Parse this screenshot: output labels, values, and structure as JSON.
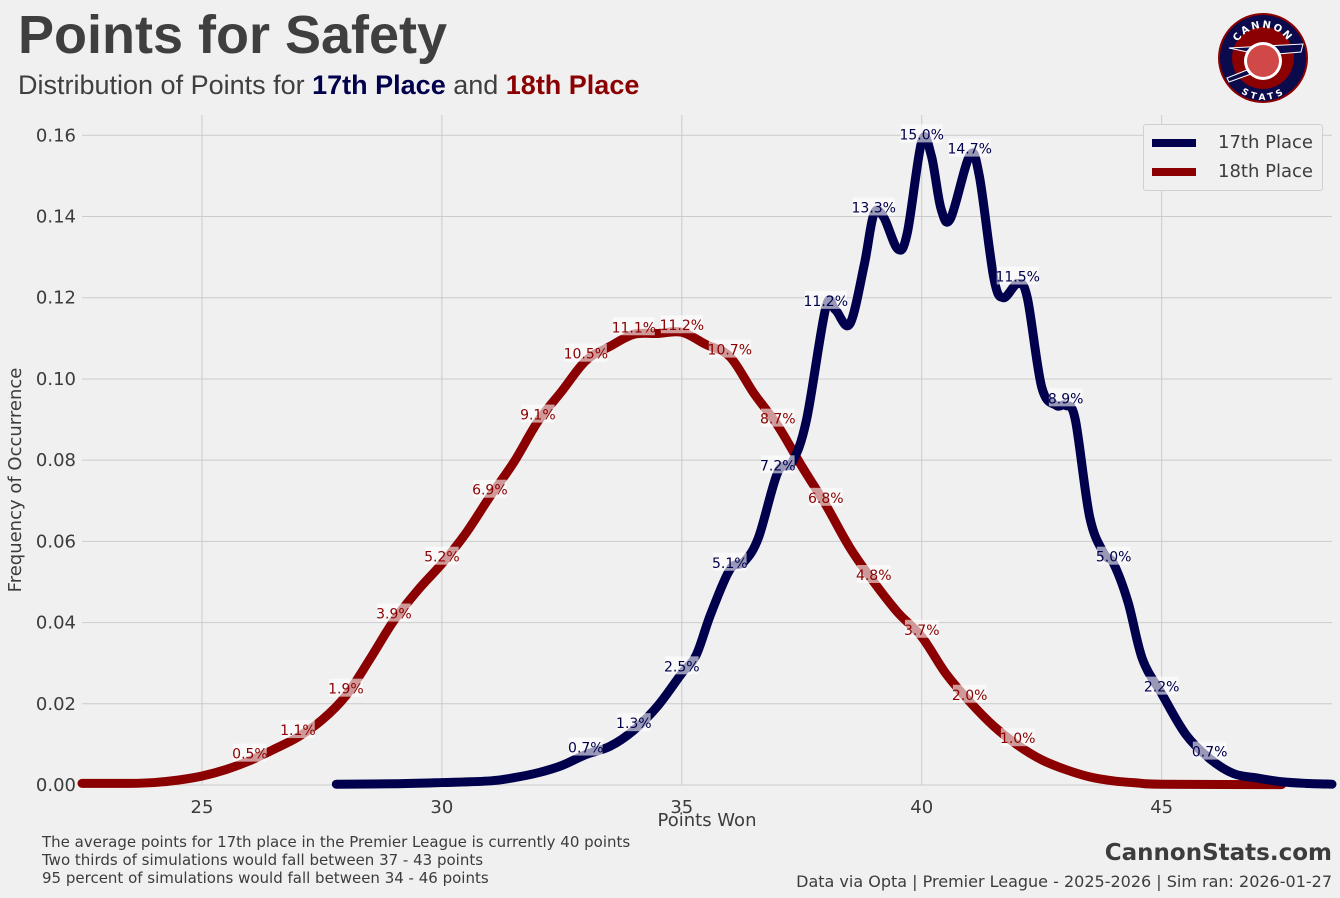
{
  "header": {
    "title": "Points for Safety",
    "subtitle_prefix": "Distribution of Points for ",
    "subtitle_17": "17th Place",
    "subtitle_and": " and ",
    "subtitle_18": "18th Place"
  },
  "logo": {
    "top_text": "CANNON",
    "bottom_text": "STATS"
  },
  "footer": {
    "notes": [
      "The average points for 17th place in the Premier League is currently 40 points",
      "Two thirds of simulations would fall between 37 - 43 points",
      "95 percent of simulations would fall between 34 - 46 points"
    ],
    "brand": "CannonStats.com",
    "source": "Data via Opta | Premier League - 2025-2026 | Sim ran: 2026-01-27"
  },
  "colors": {
    "s17": "#00004c",
    "s18": "#8b0000"
  },
  "chart_data": {
    "type": "line",
    "title": "Points for Safety",
    "xlabel": "Points Won",
    "ylabel": "Frequency of Occurrence",
    "xlim": [
      22.5,
      48.55
    ],
    "ylim": [
      0,
      0.165
    ],
    "xticks": [
      25,
      30,
      35,
      40,
      45
    ],
    "yticks": [
      0.0,
      0.02,
      0.04,
      0.06,
      0.08,
      0.1,
      0.12,
      0.14,
      0.16
    ],
    "grid": true,
    "legend_position": "top-right",
    "series": [
      {
        "name": "17th Place",
        "color": "#00004c",
        "curve": [
          [
            27.8,
            0.0002
          ],
          [
            29,
            0.0003
          ],
          [
            30,
            0.0006
          ],
          [
            31,
            0.001
          ],
          [
            31.5,
            0.0018
          ],
          [
            32,
            0.003
          ],
          [
            32.5,
            0.0048
          ],
          [
            33,
            0.0075
          ],
          [
            33.5,
            0.0095
          ],
          [
            34,
            0.0135
          ],
          [
            34.5,
            0.0195
          ],
          [
            35,
            0.0275
          ],
          [
            35.3,
            0.032
          ],
          [
            35.6,
            0.042
          ],
          [
            36,
            0.053
          ],
          [
            36.3,
            0.055
          ],
          [
            36.6,
            0.061
          ],
          [
            37,
            0.077
          ],
          [
            37.3,
            0.0795
          ],
          [
            37.6,
            0.09
          ],
          [
            38,
            0.1175
          ],
          [
            38.2,
            0.117
          ],
          [
            38.5,
            0.1135
          ],
          [
            38.8,
            0.128
          ],
          [
            39,
            0.1405
          ],
          [
            39.2,
            0.14
          ],
          [
            39.5,
            0.132
          ],
          [
            39.7,
            0.136
          ],
          [
            40,
            0.1585
          ],
          [
            40.2,
            0.155
          ],
          [
            40.4,
            0.142
          ],
          [
            40.6,
            0.1395
          ],
          [
            41,
            0.155
          ],
          [
            41.2,
            0.15
          ],
          [
            41.5,
            0.125
          ],
          [
            41.7,
            0.12
          ],
          [
            42,
            0.1235
          ],
          [
            42.2,
            0.12
          ],
          [
            42.5,
            0.098
          ],
          [
            42.8,
            0.0935
          ],
          [
            43,
            0.0935
          ],
          [
            43.2,
            0.09
          ],
          [
            43.5,
            0.066
          ],
          [
            43.8,
            0.057
          ],
          [
            44,
            0.0545
          ],
          [
            44.3,
            0.045
          ],
          [
            44.6,
            0.031
          ],
          [
            45,
            0.0225
          ],
          [
            45.5,
            0.0125
          ],
          [
            46,
            0.0065
          ],
          [
            46.5,
            0.0028
          ],
          [
            47,
            0.0017
          ],
          [
            47.5,
            0.0008
          ],
          [
            48,
            0.0004
          ],
          [
            48.55,
            0.0002
          ]
        ],
        "labels": [
          [
            33,
            "0.7%"
          ],
          [
            34,
            "1.3%"
          ],
          [
            35,
            "2.5%"
          ],
          [
            36,
            "5.1%"
          ],
          [
            37,
            "7.2%"
          ],
          [
            38,
            "11.2%"
          ],
          [
            39,
            "13.3%"
          ],
          [
            40,
            "15.0%"
          ],
          [
            41,
            "14.7%"
          ],
          [
            42,
            "11.5%"
          ],
          [
            43,
            "8.9%"
          ],
          [
            44,
            "5.0%"
          ],
          [
            45,
            "2.2%"
          ],
          [
            46,
            "0.7%"
          ]
        ]
      },
      {
        "name": "18th Place",
        "color": "#8b0000",
        "curve": [
          [
            22.5,
            0.0004
          ],
          [
            23.5,
            0.0004
          ],
          [
            24,
            0.0006
          ],
          [
            24.5,
            0.0012
          ],
          [
            25,
            0.0022
          ],
          [
            25.5,
            0.0038
          ],
          [
            26,
            0.006
          ],
          [
            26.5,
            0.0088
          ],
          [
            27,
            0.0118
          ],
          [
            27.5,
            0.016
          ],
          [
            28,
            0.022
          ],
          [
            28.5,
            0.031
          ],
          [
            29,
            0.0405
          ],
          [
            29.5,
            0.048
          ],
          [
            30,
            0.0545
          ],
          [
            30.5,
            0.062
          ],
          [
            31,
            0.071
          ],
          [
            31.5,
            0.0795
          ],
          [
            32,
            0.0895
          ],
          [
            32.5,
            0.097
          ],
          [
            33,
            0.1045
          ],
          [
            33.5,
            0.108
          ],
          [
            34,
            0.111
          ],
          [
            34.5,
            0.1112
          ],
          [
            35,
            0.1115
          ],
          [
            35.5,
            0.1085
          ],
          [
            36,
            0.1055
          ],
          [
            36.5,
            0.0965
          ],
          [
            37,
            0.0885
          ],
          [
            37.5,
            0.0785
          ],
          [
            38,
            0.069
          ],
          [
            38.5,
            0.0585
          ],
          [
            39,
            0.05
          ],
          [
            39.5,
            0.0425
          ],
          [
            40,
            0.0365
          ],
          [
            40.5,
            0.0275
          ],
          [
            41,
            0.0205
          ],
          [
            41.5,
            0.0145
          ],
          [
            42,
            0.0098
          ],
          [
            42.5,
            0.0062
          ],
          [
            43,
            0.0038
          ],
          [
            43.5,
            0.002
          ],
          [
            44,
            0.001
          ],
          [
            44.5,
            0.0005
          ],
          [
            45,
            0.0002
          ],
          [
            47.5,
            0.0001
          ]
        ],
        "labels": [
          [
            26,
            "0.5%"
          ],
          [
            27,
            "1.1%"
          ],
          [
            28,
            "1.9%"
          ],
          [
            29,
            "3.9%"
          ],
          [
            30,
            "5.2%"
          ],
          [
            31,
            "6.9%"
          ],
          [
            32,
            "9.1%"
          ],
          [
            33,
            "10.5%"
          ],
          [
            34,
            "11.1%"
          ],
          [
            35,
            "11.2%"
          ],
          [
            36,
            "10.7%"
          ],
          [
            37,
            "8.7%"
          ],
          [
            38,
            "6.8%"
          ],
          [
            39,
            "4.8%"
          ],
          [
            40,
            "3.7%"
          ],
          [
            41,
            "2.0%"
          ],
          [
            42,
            "1.0%"
          ]
        ]
      }
    ]
  }
}
